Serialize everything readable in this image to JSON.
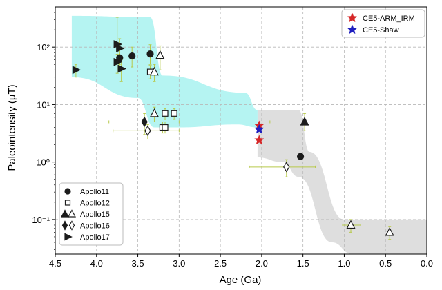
{
  "chart_data": {
    "type": "scatter",
    "title": "",
    "xlabel": "Age (Ga)",
    "ylabel": "Paleointensity (μT)",
    "x_reversed": true,
    "xlim": [
      4.5,
      0.0
    ],
    "y_scale": "log",
    "ylim": [
      0.025,
      500
    ],
    "grid": true,
    "x_ticks": [
      "4.5",
      "4.0",
      "3.5",
      "3.0",
      "2.5",
      "2.0",
      "1.5",
      "1.0",
      "0.5",
      "0.0"
    ],
    "y_ticks": [
      "10⁻¹",
      "10⁰",
      "10¹",
      "10²"
    ],
    "legend_top_right": [
      "CE5-ARM_IRM",
      "CE5-Shaw"
    ],
    "legend_bottom_left": [
      "Apollo11",
      "Apollo12",
      "Apollo15",
      "Apollo16",
      "Apollo17"
    ],
    "colors": {
      "cyan_band": "#a8f2f0",
      "gray_band": "#d8d8d8",
      "error_bar": "#b7c94a",
      "marker": "#1c1c1c",
      "ce5_arm": "#d62728",
      "ce5_shaw": "#1f1fbf"
    },
    "bands": [
      {
        "name": "cyan",
        "upper": [
          [
            4.3,
            350
          ],
          [
            3.35,
            330
          ],
          [
            3.2,
            32
          ],
          [
            2.2,
            16
          ],
          [
            2.05,
            8
          ]
        ],
        "lower": [
          [
            4.3,
            30
          ],
          [
            3.5,
            13
          ],
          [
            3.3,
            4
          ],
          [
            3.0,
            4
          ],
          [
            2.3,
            4.5
          ],
          [
            2.05,
            4
          ]
        ]
      },
      {
        "name": "gray",
        "upper": [
          [
            2.05,
            8
          ],
          [
            1.55,
            8
          ],
          [
            1.42,
            1.5
          ],
          [
            1.0,
            0.1
          ],
          [
            0.0,
            0.1
          ]
        ],
        "lower": [
          [
            2.05,
            1.2
          ],
          [
            1.75,
            1.0
          ],
          [
            1.55,
            0.55
          ],
          [
            1.15,
            0.04
          ],
          [
            0.9,
            0.025
          ],
          [
            0.0,
            0.025
          ]
        ]
      }
    ],
    "series": [
      {
        "name": "Apollo11",
        "marker": "circle",
        "filled": true,
        "points": [
          {
            "x": 3.72,
            "y": 65,
            "ylo": 38,
            "yhi": 110
          },
          {
            "x": 3.57,
            "y": 70,
            "ylo": 45,
            "yhi": 100
          },
          {
            "x": 3.35,
            "y": 76,
            "ylo": 50,
            "yhi": 110
          },
          {
            "x": 1.53,
            "y": 1.25,
            "ylo": 1.1,
            "yhi": 1.4,
            "xlo": 1.5,
            "xhi": 1.56
          }
        ]
      },
      {
        "name": "Apollo12",
        "marker": "square",
        "filled": false,
        "points": [
          {
            "x": 3.35,
            "y": 37,
            "ylo": 28,
            "yhi": 48
          },
          {
            "x": 3.17,
            "y": 7,
            "ylo": 5.5,
            "yhi": 8.5
          },
          {
            "x": 3.06,
            "y": 7,
            "ylo": 5.5,
            "yhi": 8.5
          },
          {
            "x": 3.2,
            "y": 4,
            "ylo": 3.2,
            "yhi": 5
          },
          {
            "x": 3.17,
            "y": 4,
            "ylo": 3.2,
            "yhi": 5
          }
        ]
      },
      {
        "name": "Apollo15",
        "marker": "triangle",
        "filled": false,
        "points": [
          {
            "x": 3.23,
            "y": 72,
            "ylo": 40,
            "yhi": 105
          },
          {
            "x": 3.3,
            "y": 37,
            "ylo": 25,
            "yhi": 50
          },
          {
            "x": 3.3,
            "y": 7,
            "ylo": 5,
            "yhi": 9
          },
          {
            "x": 1.48,
            "y": 5,
            "ylo": 3.5,
            "yhi": 7,
            "xlo": 1.1,
            "xhi": 1.9,
            "filled": true
          },
          {
            "x": 0.92,
            "y": 0.08,
            "ylo": 0.06,
            "yhi": 0.1,
            "xlo": 0.8,
            "xhi": 1.02
          },
          {
            "x": 0.45,
            "y": 0.06,
            "ylo": 0.045,
            "yhi": 0.075
          }
        ]
      },
      {
        "name": "Apollo16",
        "marker": "diamond",
        "filled": false,
        "points": [
          {
            "x": 3.42,
            "y": 5,
            "ylo": 3,
            "yhi": 7,
            "xlo": 3.0,
            "xhi": 3.85,
            "filled": true
          },
          {
            "x": 3.38,
            "y": 3.5,
            "ylo": 2.5,
            "yhi": 4.5,
            "xlo": 3.0,
            "xhi": 3.8
          },
          {
            "x": 1.7,
            "y": 0.82,
            "ylo": 0.55,
            "yhi": 1.1,
            "xlo": 1.35,
            "xhi": 2.15
          }
        ]
      },
      {
        "name": "Apollo17",
        "marker": "triangle-right",
        "filled": true,
        "points": [
          {
            "x": 4.25,
            "y": 40,
            "ylo": 30,
            "yhi": 50
          },
          {
            "x": 3.75,
            "y": 112,
            "ylo": 60,
            "yhi": 330
          },
          {
            "x": 3.7,
            "y": 42,
            "ylo": 25,
            "yhi": 60
          },
          {
            "x": 3.75,
            "y": 55,
            "ylo": 35,
            "yhi": 75
          },
          {
            "x": 3.72,
            "y": 95,
            "ylo": 50,
            "yhi": 140
          }
        ]
      },
      {
        "name": "CE5-ARM_IRM",
        "marker": "star",
        "color": "#d62728",
        "points": [
          {
            "x": 2.03,
            "y": 4.3
          },
          {
            "x": 2.03,
            "y": 2.4
          }
        ]
      },
      {
        "name": "CE5-Shaw",
        "marker": "star",
        "color": "#1f1fbf",
        "points": [
          {
            "x": 2.03,
            "y": 3.7
          }
        ]
      }
    ]
  }
}
